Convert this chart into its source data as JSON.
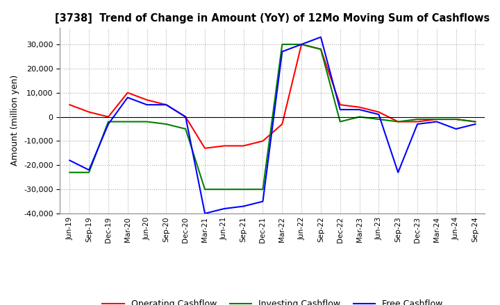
{
  "title": "[3738]  Trend of Change in Amount (YoY) of 12Mo Moving Sum of Cashflows",
  "ylabel": "Amount (million yen)",
  "x_labels": [
    "Jun-19",
    "Sep-19",
    "Dec-19",
    "Mar-20",
    "Jun-20",
    "Sep-20",
    "Dec-20",
    "Mar-21",
    "Jun-21",
    "Sep-21",
    "Dec-21",
    "Mar-22",
    "Jun-22",
    "Sep-22",
    "Dec-22",
    "Mar-23",
    "Jun-23",
    "Sep-23",
    "Dec-23",
    "Mar-24",
    "Jun-24",
    "Sep-24"
  ],
  "operating": [
    5000,
    2000,
    0,
    10000,
    7000,
    5000,
    0,
    -13000,
    -12000,
    -12000,
    -10000,
    -3000,
    30000,
    28000,
    5000,
    4000,
    2000,
    -2000,
    -2000,
    -1000,
    -1000,
    -2000
  ],
  "investing": [
    -23000,
    -23000,
    -2000,
    -2000,
    -2000,
    -3000,
    -5000,
    -30000,
    -30000,
    -30000,
    -30000,
    30000,
    30000,
    28000,
    -2000,
    0,
    -1000,
    -2000,
    -1000,
    -1000,
    -1000,
    -2000
  ],
  "free": [
    -18000,
    -22000,
    -3000,
    8000,
    5000,
    5000,
    0,
    -40000,
    -38000,
    -37000,
    -35000,
    27000,
    30000,
    33000,
    3000,
    3000,
    1000,
    -23000,
    -3000,
    -2000,
    -5000,
    -3000
  ],
  "operating_color": "#FF0000",
  "investing_color": "#008000",
  "free_color": "#0000FF",
  "ylim": [
    -40000,
    37000
  ],
  "yticks": [
    -40000,
    -30000,
    -20000,
    -10000,
    0,
    10000,
    20000,
    30000
  ],
  "background_color": "#ffffff",
  "grid_color": "#aaaaaa",
  "grid_style": ":"
}
